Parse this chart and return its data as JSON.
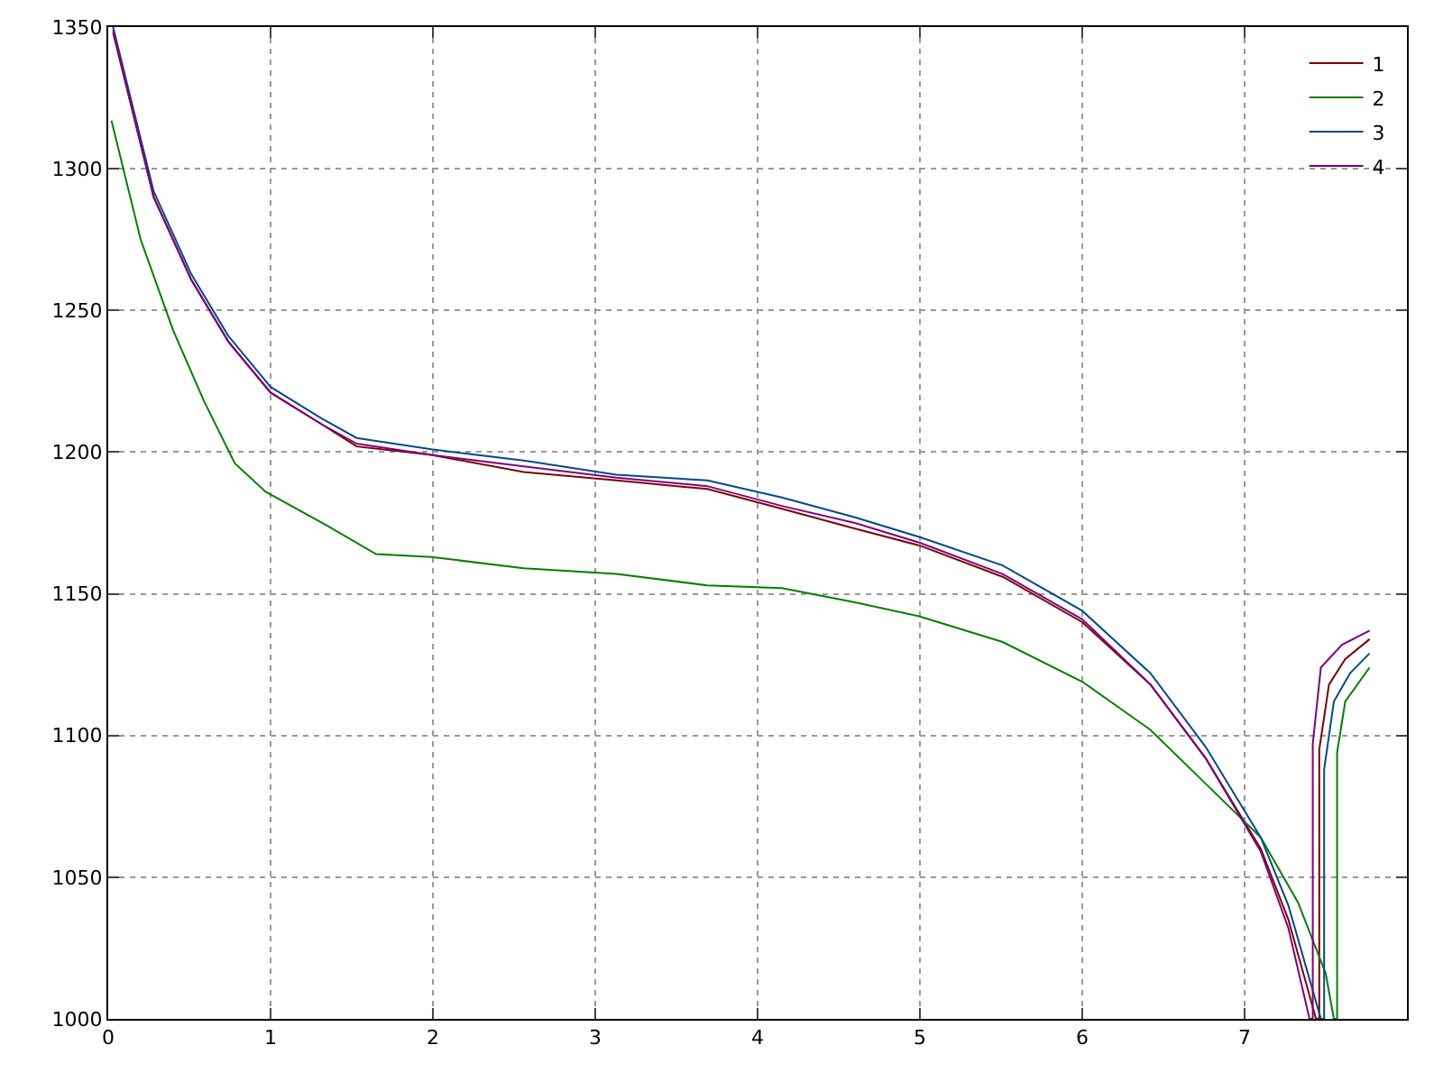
{
  "chart_data": {
    "type": "line",
    "xlim": [
      0,
      8
    ],
    "xticks": [
      0,
      1,
      2,
      3,
      4,
      5,
      6,
      7
    ],
    "ylim": [
      1000,
      1350
    ],
    "yticks": [
      1000,
      1050,
      1100,
      1150,
      1200,
      1250,
      1300,
      1350
    ],
    "grid": true,
    "legend": "top right",
    "line_style": "solid",
    "marker": "none",
    "series": [
      {
        "name": "1",
        "color": "#800000",
        "x": [
          0.03,
          0.28,
          0.51,
          0.74,
          1.0,
          1.31,
          1.53,
          1.99,
          2.56,
          3.13,
          3.69,
          4.15,
          4.6,
          5.0,
          5.51,
          6.0,
          6.42,
          6.76,
          7.1,
          7.27,
          7.44,
          7.46,
          7.46,
          7.52,
          7.62,
          7.77
        ],
        "values": [
          1348,
          1290,
          1261,
          1239,
          1221,
          1210,
          1202,
          1199,
          1193,
          1190,
          1187,
          1180,
          1173,
          1167,
          1156,
          1140,
          1118,
          1092,
          1060,
          1035,
          1000,
          1000,
          1095,
          1118,
          1127,
          1134
        ]
      },
      {
        "name": "2",
        "color": "#008000",
        "x": [
          0.02,
          0.2,
          0.4,
          0.59,
          0.78,
          0.97,
          1.35,
          1.65,
          1.99,
          2.56,
          3.13,
          3.69,
          4.15,
          4.6,
          5.0,
          5.51,
          6.0,
          6.42,
          6.76,
          7.1,
          7.33,
          7.5,
          7.55,
          7.57,
          7.57,
          7.62,
          7.77
        ],
        "values": [
          1317,
          1275,
          1243,
          1218,
          1196,
          1186,
          1174,
          1164,
          1163,
          1159,
          1157,
          1153,
          1152,
          1147,
          1142,
          1133,
          1119,
          1102,
          1083,
          1064,
          1041,
          1016,
          1000,
          1000,
          1094,
          1112,
          1124
        ]
      },
      {
        "name": "3",
        "color": "#004a8c",
        "x": [
          0.03,
          0.28,
          0.51,
          0.74,
          1.0,
          1.31,
          1.53,
          1.99,
          2.56,
          3.13,
          3.69,
          4.15,
          4.6,
          5.0,
          5.51,
          6.0,
          6.42,
          6.76,
          7.1,
          7.27,
          7.47,
          7.49,
          7.49,
          7.55,
          7.65,
          7.77
        ],
        "values": [
          1350,
          1292,
          1263,
          1241,
          1223,
          1212,
          1205,
          1201,
          1197,
          1192,
          1190,
          1184,
          1177,
          1170,
          1160,
          1144,
          1122,
          1096,
          1064,
          1040,
          1000,
          1000,
          1088,
          1112,
          1122,
          1129
        ]
      },
      {
        "name": "4",
        "color": "#800080",
        "x": [
          0.03,
          0.28,
          0.51,
          0.74,
          1.0,
          1.31,
          1.53,
          1.99,
          2.56,
          3.13,
          3.69,
          4.15,
          4.6,
          5.0,
          5.51,
          6.0,
          6.42,
          6.76,
          7.1,
          7.27,
          7.4,
          7.42,
          7.42,
          7.47,
          7.6,
          7.77
        ],
        "values": [
          1349,
          1290,
          1261,
          1239,
          1221,
          1210,
          1203,
          1199,
          1195,
          1191,
          1188,
          1181,
          1175,
          1168,
          1157,
          1141,
          1118,
          1092,
          1059,
          1032,
          1000,
          1000,
          1097,
          1124,
          1132,
          1137
        ]
      }
    ]
  }
}
